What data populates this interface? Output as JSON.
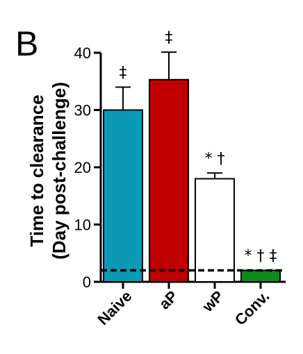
{
  "panel_label": "B",
  "chart_data": {
    "type": "bar",
    "ylabel_line1": "Time to clearance",
    "ylabel_line2": "(Day post-challenge)",
    "xlabel": "",
    "ylim": [
      0,
      40
    ],
    "yticks": [
      0,
      10,
      20,
      30,
      40
    ],
    "categories": [
      "Naive",
      "aP",
      "wP",
      "Conv."
    ],
    "values": [
      30,
      35.3,
      18,
      2
    ],
    "errors": [
      4,
      4.8,
      1,
      0
    ],
    "colors": [
      "#0a9ab5",
      "#c00000",
      "#ffffff",
      "#0f8a1a"
    ],
    "annotations": [
      "‡",
      "‡",
      "* †",
      "* † ‡"
    ],
    "reference_line": {
      "y": 2,
      "style": "dashed"
    },
    "grid": false
  }
}
